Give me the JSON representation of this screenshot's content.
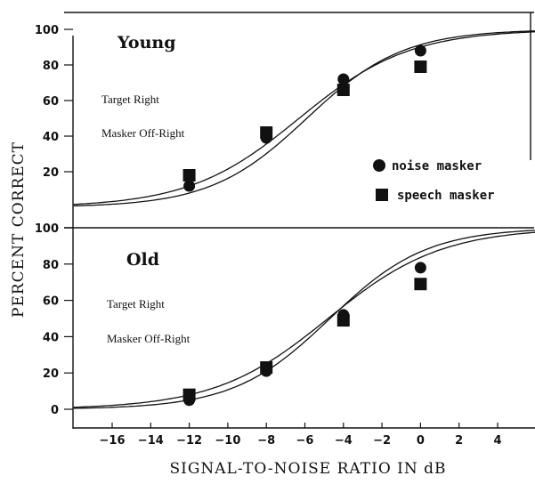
{
  "chart_data": {
    "type": "scatter",
    "ylabel": "PERCENT CORRECT",
    "xlabel": "SIGNAL-TO-NOISE RATIO IN dB",
    "xlim": [
      -18,
      6
    ],
    "x_ticks": [
      -16,
      -14,
      -12,
      -10,
      -8,
      -6,
      -4,
      -2,
      0,
      2,
      4
    ],
    "x_tick_labels": [
      "−16",
      "−14",
      "−12",
      "−10",
      "−8",
      "−6",
      "−4",
      "−2",
      "0",
      "2",
      "4"
    ],
    "legend": [
      {
        "marker": "circle",
        "label": "noise masker"
      },
      {
        "marker": "square",
        "label": "speech masker"
      }
    ],
    "legend_position": "right",
    "panels": [
      {
        "title": "Young",
        "notes": [
          "Target Right",
          "Masker Off-Right"
        ],
        "ylim": [
          0,
          100
        ],
        "y_ticks": [
          20,
          40,
          60,
          80,
          100
        ],
        "y_tick_labels": [
          "20",
          "40",
          "60",
          "80",
          "100"
        ],
        "series": [
          {
            "marker": "circle",
            "x": [
              -12,
              -8,
              -4,
              0
            ],
            "y": [
              12,
              39,
              72,
              88
            ],
            "fit": {
              "midpoint": -5.9,
              "slope": 0.4
            }
          },
          {
            "marker": "square",
            "x": [
              -12,
              -8,
              -4,
              0
            ],
            "y": [
              18,
              42,
              66,
              79
            ],
            "fit": {
              "midpoint": -6.3,
              "slope": 0.35
            }
          }
        ]
      },
      {
        "title": "Old",
        "notes": [
          "Target Right",
          "Masker Off-Right"
        ],
        "ylim": [
          0,
          100
        ],
        "y_ticks": [
          0,
          20,
          40,
          60,
          80,
          100
        ],
        "y_tick_labels": [
          "0",
          "20",
          "40",
          "60",
          "80",
          "100"
        ],
        "series": [
          {
            "marker": "circle",
            "x": [
              -12,
              -8,
              -4,
              0
            ],
            "y": [
              5,
              21,
              52,
              78
            ],
            "fit": {
              "midpoint": -4.7,
              "slope": 0.4
            }
          },
          {
            "marker": "square",
            "x": [
              -12,
              -8,
              -4,
              0
            ],
            "y": [
              8,
              23,
              49,
              69
            ],
            "fit": {
              "midpoint": -4.8,
              "slope": 0.34
            }
          }
        ]
      }
    ]
  }
}
